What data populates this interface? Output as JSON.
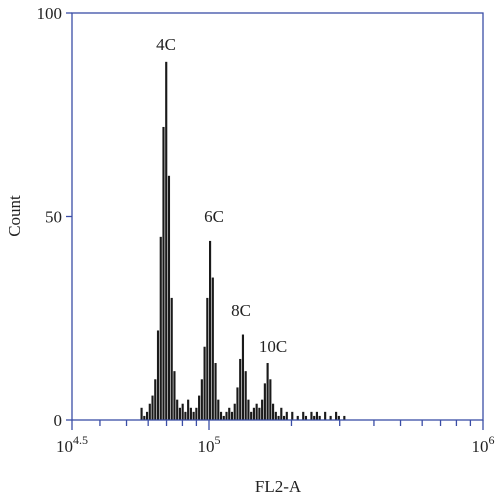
{
  "chart_data": {
    "type": "histogram",
    "x_label": "FL2-A",
    "y_label": "Count",
    "xscale": "log10",
    "xlim": [
      4.5,
      6
    ],
    "xticks": [
      {
        "value": 4.5,
        "label": "10",
        "exponent": "4.5"
      },
      {
        "value": 5,
        "label": "10",
        "exponent": "5"
      },
      {
        "value": 6,
        "label": "10",
        "exponent": "6"
      }
    ],
    "minor_xticks": [
      4.602,
      4.699,
      4.778,
      4.845,
      4.903,
      4.954,
      5.301,
      5.477,
      5.602,
      5.699,
      5.778,
      5.845,
      5.903,
      5.954
    ],
    "ylim": [
      0,
      100
    ],
    "yticks": [
      0,
      50,
      100
    ],
    "color": "#1a1a1a",
    "bins": [
      4.75,
      4.76,
      4.77,
      4.78,
      4.79,
      4.8,
      4.81,
      4.82,
      4.83,
      4.84,
      4.85,
      4.86,
      4.87,
      4.88,
      4.89,
      4.9,
      4.91,
      4.92,
      4.93,
      4.94,
      4.95,
      4.96,
      4.97,
      4.98,
      4.99,
      5.0,
      5.01,
      5.02,
      5.03,
      5.04,
      5.05,
      5.06,
      5.07,
      5.08,
      5.09,
      5.1,
      5.11,
      5.12,
      5.13,
      5.14,
      5.15,
      5.16,
      5.17,
      5.18,
      5.19,
      5.2,
      5.21,
      5.22,
      5.23,
      5.24,
      5.25,
      5.26,
      5.27,
      5.28,
      5.29,
      5.3,
      5.31,
      5.32,
      5.33,
      5.34,
      5.35,
      5.36,
      5.37,
      5.38,
      5.39,
      5.4,
      5.41,
      5.42,
      5.43,
      5.44,
      5.45,
      5.46,
      5.47,
      5.48,
      5.49,
      5.5
    ],
    "values": [
      3,
      1,
      2,
      4,
      6,
      10,
      22,
      45,
      72,
      88,
      60,
      30,
      12,
      5,
      3,
      4,
      2,
      5,
      3,
      2,
      3,
      6,
      10,
      18,
      30,
      44,
      35,
      14,
      5,
      2,
      1,
      2,
      3,
      2,
      4,
      8,
      15,
      21,
      12,
      5,
      2,
      3,
      4,
      3,
      5,
      9,
      14,
      10,
      4,
      2,
      1,
      3,
      1,
      2,
      0,
      2,
      0,
      1,
      0,
      2,
      1,
      0,
      2,
      1,
      2,
      1,
      0,
      2,
      0,
      1,
      0,
      2,
      1,
      0,
      1
    ],
    "annotations": [
      "4C",
      "6C",
      "8C",
      "10C"
    ]
  }
}
